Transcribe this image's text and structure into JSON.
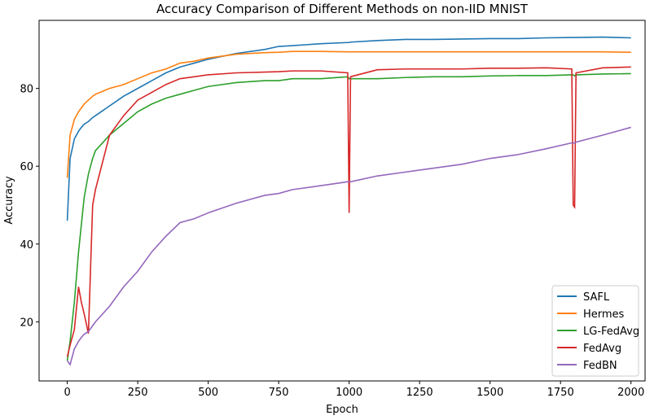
{
  "chart_data": {
    "type": "line",
    "title": "Accuracy Comparison of Different Methods on non-IID MNIST",
    "x_label": "Epoch",
    "y_label": "Accuracy",
    "x": [
      0,
      10,
      25,
      40,
      50,
      60,
      75,
      90,
      100,
      150,
      200,
      250,
      300,
      350,
      400,
      450,
      500,
      600,
      700,
      750,
      800,
      900,
      995,
      1000,
      1005,
      1100,
      1200,
      1300,
      1400,
      1500,
      1600,
      1700,
      1790,
      1795,
      1800,
      1805,
      1900,
      2000
    ],
    "series": [
      {
        "name": "SAFL",
        "color": "#1f77b4",
        "values": [
          46,
          62,
          67,
          69,
          70,
          70.8,
          71.5,
          72.5,
          73,
          75.5,
          78,
          80,
          82,
          84,
          85.5,
          86.5,
          87.5,
          89,
          90,
          90.8,
          91,
          91.5,
          91.8,
          91.8,
          91.9,
          92.3,
          92.6,
          92.6,
          92.7,
          92.8,
          92.8,
          93,
          93.1,
          93.1,
          93.1,
          93.1,
          93.2,
          93
        ]
      },
      {
        "name": "Hermes",
        "color": "#ff7f0e",
        "values": [
          57,
          68,
          72,
          74,
          75,
          76,
          77,
          78,
          78.5,
          80,
          81,
          82.5,
          84,
          85,
          86.5,
          87,
          87.8,
          88.8,
          89.2,
          89.3,
          89.5,
          89.5,
          89.4,
          89.4,
          89.4,
          89.4,
          89.4,
          89.4,
          89.4,
          89.4,
          89.4,
          89.4,
          89.4,
          89.4,
          89.4,
          89.4,
          89.4,
          89.3
        ]
      },
      {
        "name": "LG-FedAvg",
        "color": "#2ca02c",
        "values": [
          10,
          15,
          25,
          38,
          45,
          52,
          58,
          62,
          64,
          68,
          71,
          74,
          76,
          77.5,
          78.5,
          79.5,
          80.5,
          81.5,
          82,
          82,
          82.5,
          82.5,
          83,
          82.5,
          82.5,
          82.5,
          82.8,
          83,
          83,
          83.2,
          83.3,
          83.3,
          83.5,
          83.5,
          83.2,
          83.5,
          83.7,
          83.8
        ]
      },
      {
        "name": "FedAvg",
        "color": "#d62728",
        "values": [
          11,
          14,
          18,
          29,
          25,
          22,
          17,
          50,
          54,
          68,
          73,
          77,
          79,
          81,
          82.5,
          83,
          83.5,
          84,
          84.2,
          84.3,
          84.5,
          84.5,
          84,
          48,
          83,
          84.8,
          85,
          85,
          85,
          85.2,
          85.2,
          85.3,
          85,
          50,
          49.5,
          84,
          85.3,
          85.5
        ]
      },
      {
        "name": "FedBN",
        "color": "#9467bd",
        "values": [
          10,
          9,
          13,
          15,
          16,
          16.8,
          17.5,
          19,
          20,
          24,
          29,
          33,
          38,
          42,
          45.5,
          46.5,
          48,
          50.5,
          52.5,
          53,
          54,
          55,
          56,
          56,
          56,
          57.5,
          58.5,
          59.5,
          60.5,
          62,
          63,
          64.5,
          66,
          66,
          66,
          66.2,
          68,
          70
        ]
      }
    ],
    "xlim": [
      -100,
      2050
    ],
    "ylim": [
      4.8,
      97.5
    ],
    "xticks": [
      0,
      250,
      500,
      750,
      1000,
      1250,
      1500,
      1750,
      2000
    ],
    "yticks": [
      20,
      40,
      60,
      80
    ],
    "legend": "lower right"
  }
}
